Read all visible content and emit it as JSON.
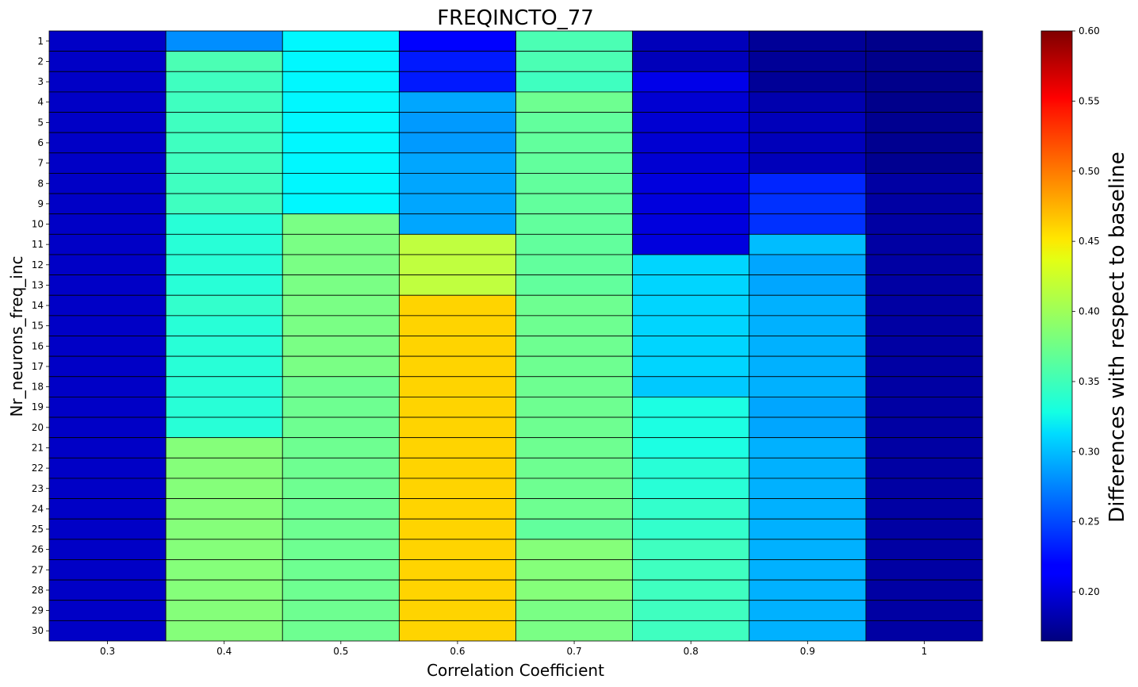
{
  "chart_data": {
    "type": "heatmap",
    "title": "FREQINCTO_77",
    "xlabel": "Correlation Coefficient",
    "ylabel": "Nr_neurons_freq_inc",
    "colorbar_label": "Differences with respect to baseline",
    "colormap": "jet",
    "vmin": 0.165,
    "vmax": 0.6,
    "colorbar_ticks": [
      "0.20",
      "0.25",
      "0.30",
      "0.35",
      "0.40",
      "0.45",
      "0.50",
      "0.55",
      "0.60"
    ],
    "colorbar_tick_values": [
      0.2,
      0.25,
      0.3,
      0.35,
      0.4,
      0.45,
      0.5,
      0.55,
      0.6
    ],
    "x_labels": [
      "0.3",
      "0.4",
      "0.5",
      "0.6",
      "0.7",
      "0.8",
      "0.9",
      "1"
    ],
    "y_labels": [
      "1",
      "2",
      "3",
      "4",
      "5",
      "6",
      "7",
      "8",
      "9",
      "10",
      "11",
      "12",
      "13",
      "14",
      "15",
      "16",
      "17",
      "18",
      "19",
      "20",
      "21",
      "22",
      "23",
      "24",
      "25",
      "26",
      "27",
      "28",
      "29",
      "30"
    ],
    "values": [
      [
        0.195,
        0.28,
        0.325,
        0.22,
        0.36,
        0.19,
        0.175,
        0.17
      ],
      [
        0.195,
        0.36,
        0.325,
        0.23,
        0.36,
        0.19,
        0.175,
        0.17
      ],
      [
        0.195,
        0.355,
        0.325,
        0.23,
        0.355,
        0.21,
        0.175,
        0.17
      ],
      [
        0.195,
        0.355,
        0.325,
        0.29,
        0.375,
        0.2,
        0.185,
        0.17
      ],
      [
        0.195,
        0.355,
        0.325,
        0.285,
        0.37,
        0.2,
        0.19,
        0.172
      ],
      [
        0.195,
        0.355,
        0.325,
        0.285,
        0.37,
        0.2,
        0.19,
        0.172
      ],
      [
        0.195,
        0.355,
        0.325,
        0.29,
        0.37,
        0.2,
        0.19,
        0.172
      ],
      [
        0.195,
        0.355,
        0.325,
        0.29,
        0.37,
        0.205,
        0.235,
        0.18
      ],
      [
        0.195,
        0.355,
        0.325,
        0.29,
        0.37,
        0.205,
        0.24,
        0.18
      ],
      [
        0.195,
        0.345,
        0.38,
        0.29,
        0.37,
        0.205,
        0.24,
        0.18
      ],
      [
        0.195,
        0.345,
        0.38,
        0.41,
        0.37,
        0.205,
        0.3,
        0.18
      ],
      [
        0.195,
        0.345,
        0.38,
        0.41,
        0.37,
        0.31,
        0.29,
        0.18
      ],
      [
        0.195,
        0.345,
        0.38,
        0.41,
        0.37,
        0.31,
        0.29,
        0.18
      ],
      [
        0.195,
        0.35,
        0.38,
        0.455,
        0.375,
        0.31,
        0.295,
        0.18
      ],
      [
        0.195,
        0.345,
        0.38,
        0.455,
        0.375,
        0.31,
        0.295,
        0.18
      ],
      [
        0.195,
        0.345,
        0.38,
        0.455,
        0.375,
        0.31,
        0.295,
        0.18
      ],
      [
        0.195,
        0.345,
        0.38,
        0.455,
        0.375,
        0.31,
        0.295,
        0.18
      ],
      [
        0.195,
        0.345,
        0.375,
        0.455,
        0.375,
        0.305,
        0.295,
        0.18
      ],
      [
        0.195,
        0.345,
        0.375,
        0.455,
        0.375,
        0.34,
        0.29,
        0.18
      ],
      [
        0.195,
        0.345,
        0.375,
        0.455,
        0.375,
        0.34,
        0.29,
        0.18
      ],
      [
        0.195,
        0.385,
        0.375,
        0.455,
        0.375,
        0.34,
        0.295,
        0.18
      ],
      [
        0.195,
        0.385,
        0.375,
        0.455,
        0.375,
        0.345,
        0.295,
        0.18
      ],
      [
        0.195,
        0.385,
        0.375,
        0.455,
        0.375,
        0.345,
        0.295,
        0.18
      ],
      [
        0.195,
        0.385,
        0.375,
        0.455,
        0.375,
        0.35,
        0.295,
        0.18
      ],
      [
        0.195,
        0.385,
        0.375,
        0.455,
        0.37,
        0.35,
        0.295,
        0.18
      ],
      [
        0.195,
        0.385,
        0.375,
        0.455,
        0.385,
        0.355,
        0.295,
        0.18
      ],
      [
        0.195,
        0.385,
        0.375,
        0.455,
        0.385,
        0.355,
        0.295,
        0.18
      ],
      [
        0.195,
        0.385,
        0.375,
        0.455,
        0.385,
        0.355,
        0.295,
        0.18
      ],
      [
        0.195,
        0.385,
        0.375,
        0.455,
        0.38,
        0.355,
        0.295,
        0.18
      ],
      [
        0.195,
        0.385,
        0.375,
        0.455,
        0.38,
        0.355,
        0.295,
        0.18
      ]
    ]
  }
}
